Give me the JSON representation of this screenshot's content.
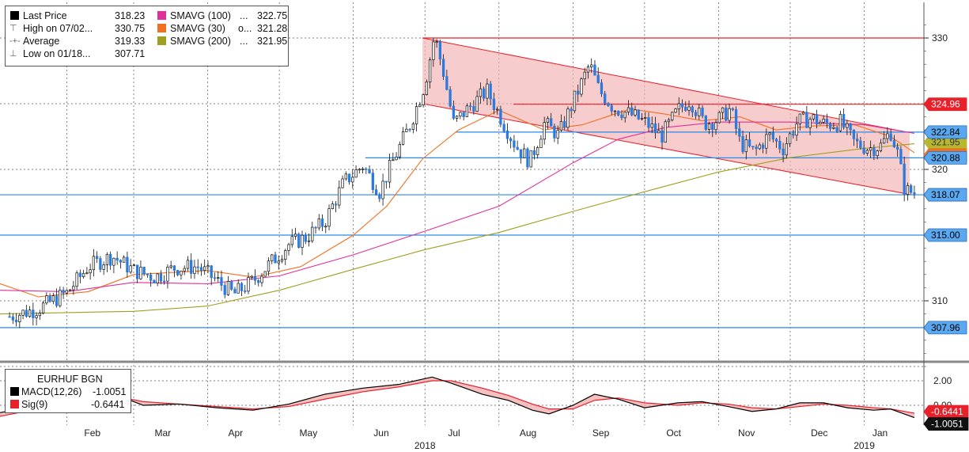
{
  "chart_data": [
    {
      "type": "candlestick",
      "instrument": "EURHUF BGN",
      "x_axis": {
        "months": [
          "Feb",
          "Mar",
          "Apr",
          "May",
          "Jun",
          "Jul",
          "Aug",
          "Sep",
          "Oct",
          "Nov",
          "Dec",
          "Jan"
        ],
        "years": [
          "2018",
          "2019"
        ]
      },
      "y_axis": {
        "ticks": [
          "330",
          "320",
          "310"
        ],
        "ylim": [
          304.5,
          332.0
        ]
      },
      "grid": true,
      "legend": {
        "placement": "top-left",
        "rows": [
          {
            "label": "Last Price",
            "value": "318.23",
            "color": "#000000",
            "glyph": ""
          },
          {
            "label": "High on 07/02...",
            "value": "330.75",
            "color": "",
            "glyph": "⊤"
          },
          {
            "label": "Average",
            "value": "319.33",
            "color": "",
            "glyph": "-+-"
          },
          {
            "label": "Low on 01/18...",
            "value": "307.71",
            "color": "",
            "glyph": "⊥"
          },
          {
            "label": "SMAVG (100)",
            "value": "322.75",
            "color": "#e0309a",
            "glyph": ""
          },
          {
            "label": "SMAVG (30)",
            "value": "321.28",
            "color": "#f07020",
            "glyph": "o..."
          },
          {
            "label": "SMAVG (200)",
            "value": "321.95",
            "color": "#a0a020",
            "glyph": ""
          }
        ]
      },
      "horizontal_levels": [
        {
          "value": 330.0,
          "label": "",
          "color": "#e8202a"
        },
        {
          "value": 324.96,
          "label": "324.96",
          "color": "#e8202a",
          "tag_bg": "#e8202a",
          "tag_fg": "#ffffff"
        },
        {
          "value": 322.84,
          "label": "322.84",
          "color": "#2a8ae8",
          "tag_bg": "#5aa8f0",
          "tag_fg": "#000000"
        },
        {
          "value": 320.88,
          "label": "320.88",
          "color": "#2a8ae8",
          "tag_bg": "#5aa8f0",
          "tag_fg": "#000000"
        },
        {
          "value": 318.07,
          "label": "318.07",
          "color": "#2a8ae8",
          "tag_bg": "#5aa8f0",
          "tag_fg": "#000000"
        },
        {
          "value": 315.0,
          "label": "315.00",
          "color": "#2a8ae8",
          "tag_bg": "#5aa8f0",
          "tag_fg": "#000000"
        },
        {
          "value": 307.96,
          "label": "307.96",
          "color": "#2a8ae8",
          "tag_bg": "#5aa8f0",
          "tag_fg": "#000000"
        }
      ],
      "hidden_tags": [
        {
          "value": 321.95,
          "label": "321.95",
          "tag_bg": "#b8b830"
        },
        {
          "value": 321.28,
          "label": "321.28",
          "tag_bg": "#f07020"
        }
      ],
      "channel": {
        "color": "#f2b0b0",
        "upper": [
          [
            "2018-06-30",
            330.0
          ],
          [
            "2019-01-20",
            322.8
          ]
        ],
        "lower": [
          [
            "2018-06-30",
            325.0
          ],
          [
            "2019-01-20",
            318.1
          ]
        ]
      },
      "price_anchors": [
        [
          "2018-01-08",
          308.8
        ],
        [
          "2018-01-20",
          309.4
        ],
        [
          "2018-02-01",
          310.6
        ],
        [
          "2018-02-10",
          312.6
        ],
        [
          "2018-02-20",
          313.4
        ],
        [
          "2018-03-01",
          312.3
        ],
        [
          "2018-03-10",
          311.8
        ],
        [
          "2018-03-18",
          312.5
        ],
        [
          "2018-03-28",
          312.6
        ],
        [
          "2018-04-05",
          311.5
        ],
        [
          "2018-04-12",
          310.5
        ],
        [
          "2018-04-20",
          311.5
        ],
        [
          "2018-04-28",
          313.0
        ],
        [
          "2018-05-05",
          314.3
        ],
        [
          "2018-05-12",
          314.8
        ],
        [
          "2018-05-20",
          316.0
        ],
        [
          "2018-05-28",
          319.0
        ],
        [
          "2018-06-05",
          320.3
        ],
        [
          "2018-06-12",
          318.3
        ],
        [
          "2018-06-18",
          320.8
        ],
        [
          "2018-06-25",
          323.5
        ],
        [
          "2018-07-01",
          326.5
        ],
        [
          "2018-07-05",
          330.2
        ],
        [
          "2018-07-09",
          327.2
        ],
        [
          "2018-07-13",
          323.5
        ],
        [
          "2018-07-20",
          324.8
        ],
        [
          "2018-07-27",
          326.0
        ],
        [
          "2018-08-03",
          323.5
        ],
        [
          "2018-08-08",
          321.8
        ],
        [
          "2018-08-14",
          320.6
        ],
        [
          "2018-08-20",
          323.5
        ],
        [
          "2018-08-26",
          322.6
        ],
        [
          "2018-09-02",
          325.5
        ],
        [
          "2018-09-08",
          328.0
        ],
        [
          "2018-09-12",
          326.0
        ],
        [
          "2018-09-18",
          324.7
        ],
        [
          "2018-09-25",
          324.2
        ],
        [
          "2018-10-02",
          323.5
        ],
        [
          "2018-10-08",
          322.5
        ],
        [
          "2018-10-15",
          324.5
        ],
        [
          "2018-10-20",
          325.3
        ],
        [
          "2018-10-26",
          323.5
        ],
        [
          "2018-11-01",
          323.8
        ],
        [
          "2018-11-06",
          324.6
        ],
        [
          "2018-11-10",
          322.0
        ],
        [
          "2018-11-16",
          321.3
        ],
        [
          "2018-11-22",
          322.6
        ],
        [
          "2018-11-28",
          321.6
        ],
        [
          "2018-12-04",
          323.6
        ],
        [
          "2018-12-10",
          323.9
        ],
        [
          "2018-12-16",
          323.4
        ],
        [
          "2018-12-22",
          323.6
        ],
        [
          "2018-12-28",
          322.0
        ],
        [
          "2019-01-03",
          321.6
        ],
        [
          "2019-01-08",
          321.8
        ],
        [
          "2019-01-12",
          322.9
        ],
        [
          "2019-01-15",
          321.2
        ],
        [
          "2019-01-18",
          318.4
        ],
        [
          "2019-01-22",
          318.23
        ]
      ],
      "sma_series": [
        {
          "name": "SMAVG (30)",
          "color": "#f07020",
          "points": [
            [
              "2018-01-04",
              311.3
            ],
            [
              "2018-01-20",
              310.3
            ],
            [
              "2018-02-10",
              310.7
            ],
            [
              "2018-03-01",
              312.0
            ],
            [
              "2018-04-01",
              312.3
            ],
            [
              "2018-04-20",
              311.8
            ],
            [
              "2018-05-10",
              312.6
            ],
            [
              "2018-06-01",
              315.0
            ],
            [
              "2018-06-15",
              317.2
            ],
            [
              "2018-06-30",
              320.8
            ],
            [
              "2018-07-15",
              323.0
            ],
            [
              "2018-08-01",
              324.5
            ],
            [
              "2018-08-20",
              323.0
            ],
            [
              "2018-09-05",
              323.4
            ],
            [
              "2018-09-25",
              324.6
            ],
            [
              "2018-10-10",
              324.2
            ],
            [
              "2018-10-25",
              323.7
            ],
            [
              "2018-11-10",
              324.0
            ],
            [
              "2018-11-25",
              323.0
            ],
            [
              "2018-12-10",
              323.3
            ],
            [
              "2018-12-28",
              323.4
            ],
            [
              "2019-01-12",
              322.5
            ],
            [
              "2019-01-22",
              321.28
            ]
          ]
        },
        {
          "name": "SMAVG (100)",
          "color": "#e0309a",
          "points": [
            [
              "2018-01-04",
              310.8
            ],
            [
              "2018-02-01",
              310.7
            ],
            [
              "2018-03-01",
              311.4
            ],
            [
              "2018-04-01",
              311.3
            ],
            [
              "2018-05-01",
              311.9
            ],
            [
              "2018-06-01",
              313.5
            ],
            [
              "2018-07-01",
              315.3
            ],
            [
              "2018-08-01",
              317.2
            ],
            [
              "2018-09-01",
              320.5
            ],
            [
              "2018-09-20",
              322.3
            ],
            [
              "2018-10-10",
              323.2
            ],
            [
              "2018-11-01",
              323.6
            ],
            [
              "2018-12-01",
              323.6
            ],
            [
              "2019-01-01",
              323.4
            ],
            [
              "2019-01-22",
              322.75
            ]
          ]
        },
        {
          "name": "SMAVG (200)",
          "color": "#a0a020",
          "points": [
            [
              "2018-01-04",
              309.0
            ],
            [
              "2018-02-01",
              309.1
            ],
            [
              "2018-03-01",
              309.2
            ],
            [
              "2018-04-01",
              309.6
            ],
            [
              "2018-05-01",
              310.8
            ],
            [
              "2018-06-01",
              312.4
            ],
            [
              "2018-07-01",
              313.9
            ],
            [
              "2018-08-01",
              315.2
            ],
            [
              "2018-09-01",
              316.8
            ],
            [
              "2018-10-01",
              318.3
            ],
            [
              "2018-11-01",
              319.8
            ],
            [
              "2018-12-01",
              320.9
            ],
            [
              "2019-01-01",
              321.6
            ],
            [
              "2019-01-22",
              321.95
            ]
          ]
        }
      ]
    },
    {
      "type": "line",
      "title": "EURHUF BGN",
      "legend": {
        "placement": "top-left",
        "rows": [
          {
            "label": "MACD(12,26)",
            "value": "-1.0051",
            "color": "#000000"
          },
          {
            "label": "Sig(9)",
            "value": "-0.6441",
            "color": "#e8202a"
          }
        ]
      },
      "y_axis": {
        "ticks": [
          "2.00",
          "0.00"
        ],
        "ylim": [
          -2.3,
          3.0
        ]
      },
      "last_value_tags": [
        {
          "label": "-0.6441",
          "tag_bg": "#e8202a",
          "tag_fg": "#ffffff",
          "value": -0.6441
        },
        {
          "label": "-1.0051",
          "tag_bg": "#111111",
          "tag_fg": "#ffffff",
          "value": -1.0051
        }
      ],
      "fill_color": "#f4b0b0",
      "series": [
        {
          "name": "MACD(12,26)",
          "color": "#000000",
          "points": [
            [
              "2018-01-04",
              -0.6
            ],
            [
              "2018-01-25",
              0.2
            ],
            [
              "2018-02-10",
              0.8
            ],
            [
              "2018-02-25",
              0.6
            ],
            [
              "2018-03-05",
              0.0
            ],
            [
              "2018-03-20",
              0.1
            ],
            [
              "2018-04-05",
              -0.2
            ],
            [
              "2018-04-20",
              -0.4
            ],
            [
              "2018-05-05",
              0.1
            ],
            [
              "2018-05-20",
              0.9
            ],
            [
              "2018-06-05",
              1.4
            ],
            [
              "2018-06-20",
              1.7
            ],
            [
              "2018-07-04",
              2.3
            ],
            [
              "2018-07-12",
              1.8
            ],
            [
              "2018-07-25",
              0.9
            ],
            [
              "2018-08-05",
              0.4
            ],
            [
              "2018-08-15",
              -0.4
            ],
            [
              "2018-08-22",
              -0.7
            ],
            [
              "2018-09-01",
              0.0
            ],
            [
              "2018-09-10",
              0.9
            ],
            [
              "2018-09-20",
              0.5
            ],
            [
              "2018-10-01",
              -0.2
            ],
            [
              "2018-10-15",
              0.2
            ],
            [
              "2018-10-25",
              0.3
            ],
            [
              "2018-11-05",
              -0.1
            ],
            [
              "2018-11-15",
              -0.5
            ],
            [
              "2018-11-25",
              -0.3
            ],
            [
              "2018-12-05",
              0.2
            ],
            [
              "2018-12-15",
              0.2
            ],
            [
              "2018-12-25",
              -0.2
            ],
            [
              "2019-01-05",
              -0.4
            ],
            [
              "2019-01-12",
              -0.3
            ],
            [
              "2019-01-22",
              -1.0051
            ]
          ]
        },
        {
          "name": "Sig(9)",
          "color": "#e8202a",
          "points": [
            [
              "2018-01-04",
              -0.9
            ],
            [
              "2018-01-25",
              -0.1
            ],
            [
              "2018-02-10",
              0.5
            ],
            [
              "2018-02-25",
              0.6
            ],
            [
              "2018-03-05",
              0.3
            ],
            [
              "2018-03-20",
              0.1
            ],
            [
              "2018-04-05",
              -0.1
            ],
            [
              "2018-04-20",
              -0.3
            ],
            [
              "2018-05-05",
              -0.1
            ],
            [
              "2018-05-20",
              0.5
            ],
            [
              "2018-06-05",
              1.1
            ],
            [
              "2018-06-20",
              1.5
            ],
            [
              "2018-07-04",
              2.0
            ],
            [
              "2018-07-12",
              2.0
            ],
            [
              "2018-07-25",
              1.4
            ],
            [
              "2018-08-05",
              0.8
            ],
            [
              "2018-08-15",
              0.1
            ],
            [
              "2018-08-22",
              -0.3
            ],
            [
              "2018-09-01",
              -0.3
            ],
            [
              "2018-09-10",
              0.4
            ],
            [
              "2018-09-20",
              0.6
            ],
            [
              "2018-10-01",
              0.2
            ],
            [
              "2018-10-15",
              0.0
            ],
            [
              "2018-10-25",
              0.2
            ],
            [
              "2018-11-05",
              0.1
            ],
            [
              "2018-11-15",
              -0.2
            ],
            [
              "2018-11-25",
              -0.3
            ],
            [
              "2018-12-05",
              -0.1
            ],
            [
              "2018-12-15",
              0.1
            ],
            [
              "2018-12-25",
              0.0
            ],
            [
              "2019-01-05",
              -0.2
            ],
            [
              "2019-01-12",
              -0.3
            ],
            [
              "2019-01-22",
              -0.6441
            ]
          ]
        }
      ]
    }
  ]
}
